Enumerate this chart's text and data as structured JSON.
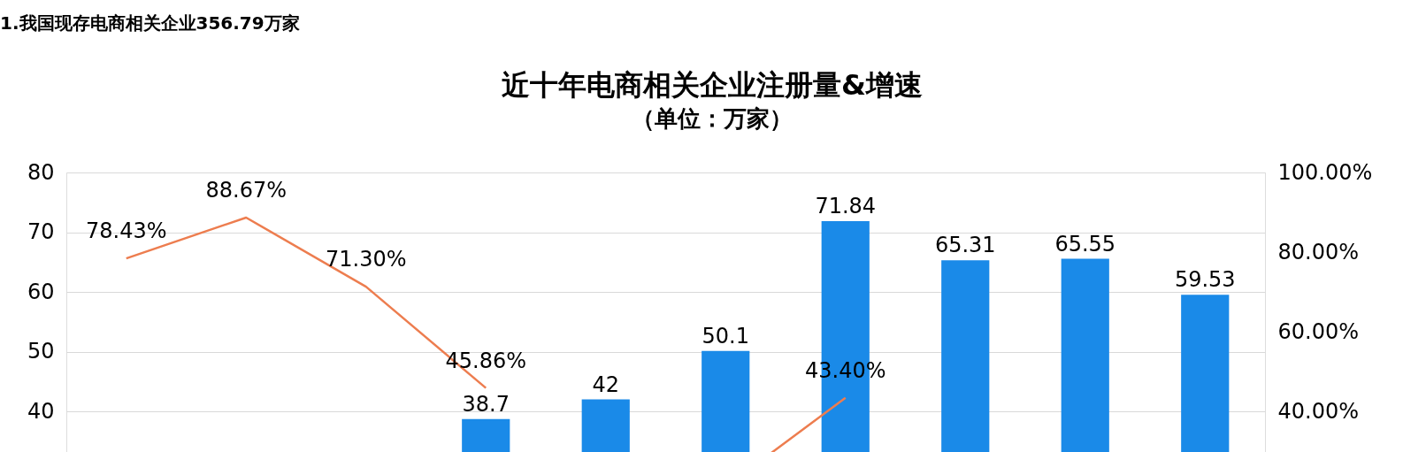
{
  "chart_data": {
    "type": "bar",
    "title": "近十年电商相关企业注册量&增速",
    "subtitle": "（单位：万家）",
    "annotations": [
      "1.我国现存电商相关企业356.79万家"
    ],
    "categories": [
      null,
      null,
      null,
      null,
      null,
      null,
      null,
      null,
      null,
      null
    ],
    "series": [
      {
        "color": "#1a8ae8",
        "values": [
          null,
          null,
          null,
          38.7,
          42,
          50.1,
          71.84,
          65.31,
          65.55,
          59.53
        ],
        "value_labels": [
          null,
          null,
          null,
          "38.7",
          "42",
          "50.1",
          "71.84",
          "65.31",
          "65.55",
          "59.53"
        ]
      },
      {
        "type": "line",
        "axis": "y2",
        "color": "#ed7d4f",
        "values": [
          78.43,
          88.67,
          71.3,
          45.86,
          null,
          21,
          43.4,
          null,
          null,
          null
        ],
        "value_labels": [
          "78.43%",
          "88.67%",
          "71.30%",
          "45.86%",
          null,
          null,
          "43.40%",
          null,
          null,
          null
        ]
      }
    ],
    "ylim": [
      0,
      80
    ],
    "yticks": [
      40,
      50,
      60,
      70,
      80
    ],
    "y2lim": [
      -20,
      100
    ],
    "y2ticks": [
      {
        "value": 40,
        "label": "40.00%"
      },
      {
        "value": 60,
        "label": "60.00%"
      },
      {
        "value": 80,
        "label": "80.00%"
      },
      {
        "value": 100,
        "label": "100.00%"
      }
    ],
    "grid": "y",
    "legend": false,
    "tick_labels": "y",
    "marker": "none",
    "line_style": "solid"
  }
}
